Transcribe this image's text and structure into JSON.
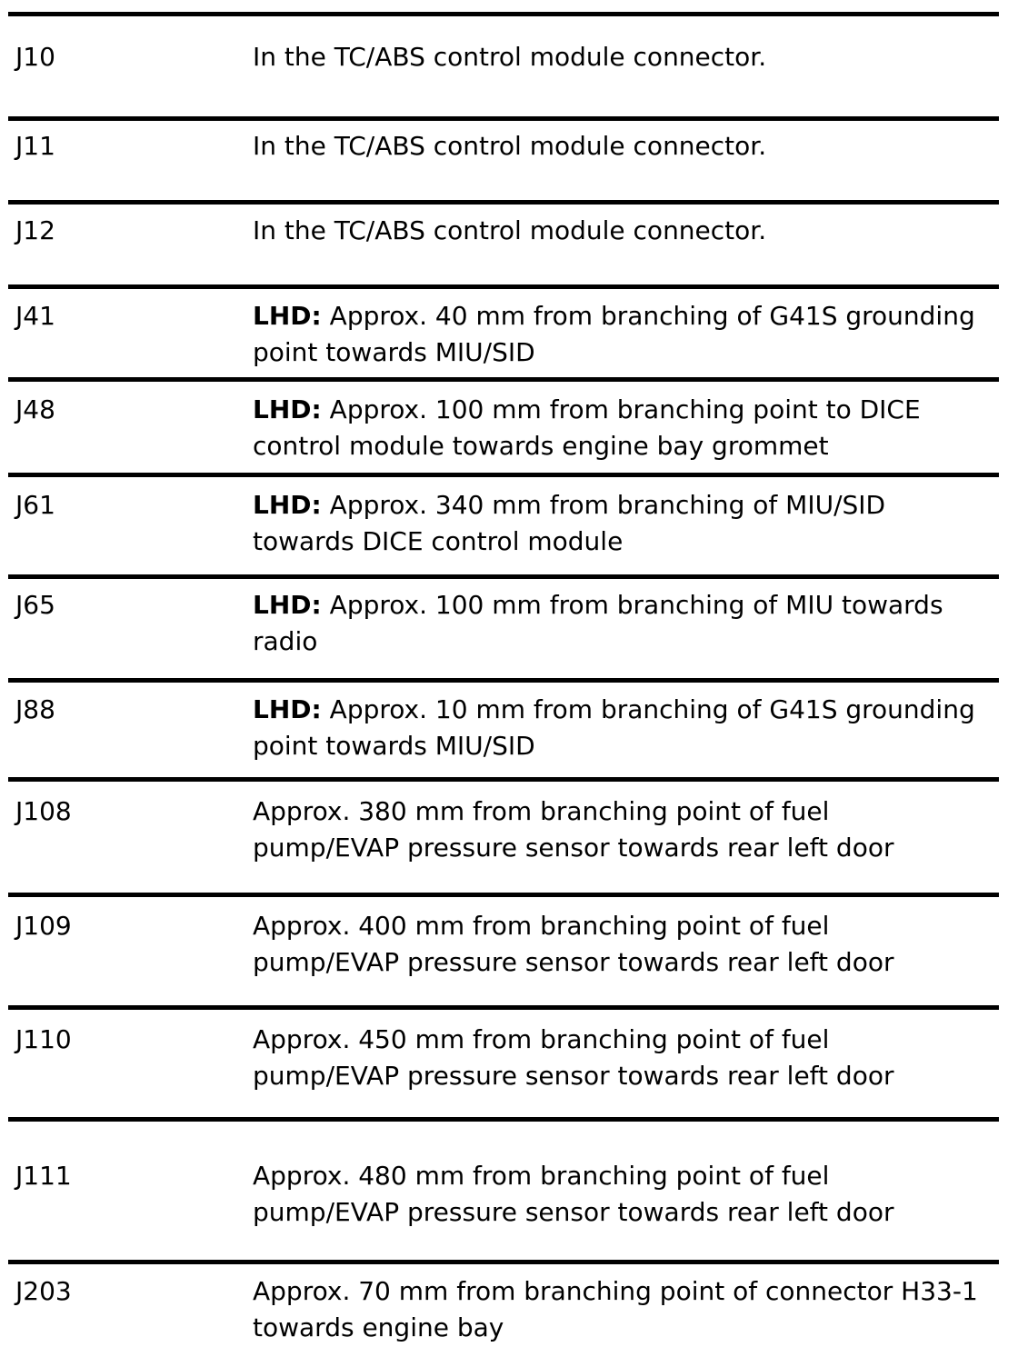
{
  "document": {
    "type": "connector-location-table",
    "text_color": "#000000",
    "background_color": "#ffffff",
    "rule_color": "#000000",
    "rows": [
      {
        "code": "J10",
        "prefix": "",
        "line1": "In the TC/ABS control module connector.",
        "line2": ""
      },
      {
        "code": "J11",
        "prefix": "",
        "line1": "In the TC/ABS control module connector.",
        "line2": ""
      },
      {
        "code": "J12",
        "prefix": "",
        "line1": "In the TC/ABS control module connector.",
        "line2": ""
      },
      {
        "code": "J41",
        "prefix": "LHD:",
        "line1": "Approx. 40 mm from branching of G41S grounding",
        "line2": "point towards MIU/SID"
      },
      {
        "code": "J48",
        "prefix": "LHD:",
        "line1": "Approx. 100 mm from branching point to DICE",
        "line2": "control module towards engine bay grommet"
      },
      {
        "code": "J61",
        "prefix": "LHD:",
        "line1": "Approx. 340 mm from branching of MIU/SID",
        "line2": "towards DICE control module"
      },
      {
        "code": "J65",
        "prefix": "LHD:",
        "line1": "Approx. 100 mm from branching of MIU towards",
        "line2": "radio"
      },
      {
        "code": "J88",
        "prefix": "LHD:",
        "line1": "Approx. 10 mm from branching of G41S grounding",
        "line2": "point towards MIU/SID"
      },
      {
        "code": "J108",
        "prefix": "",
        "line1": "Approx. 380 mm from branching point of fuel",
        "line2": "pump/EVAP pressure sensor towards rear left door"
      },
      {
        "code": "J109",
        "prefix": "",
        "line1": "Approx. 400 mm from branching point of fuel",
        "line2": "pump/EVAP pressure sensor towards rear left door"
      },
      {
        "code": "J110",
        "prefix": "",
        "line1": "Approx. 450 mm from branching point of fuel",
        "line2": "pump/EVAP pressure sensor towards rear left door"
      },
      {
        "code": "J111",
        "prefix": "",
        "line1": "Approx. 480 mm from branching point of fuel",
        "line2": "pump/EVAP pressure sensor towards rear left door"
      },
      {
        "code": "J203",
        "prefix": "",
        "line1": "Approx. 70 mm from branching point of connector H33-1",
        "line2": "towards engine bay"
      }
    ]
  }
}
